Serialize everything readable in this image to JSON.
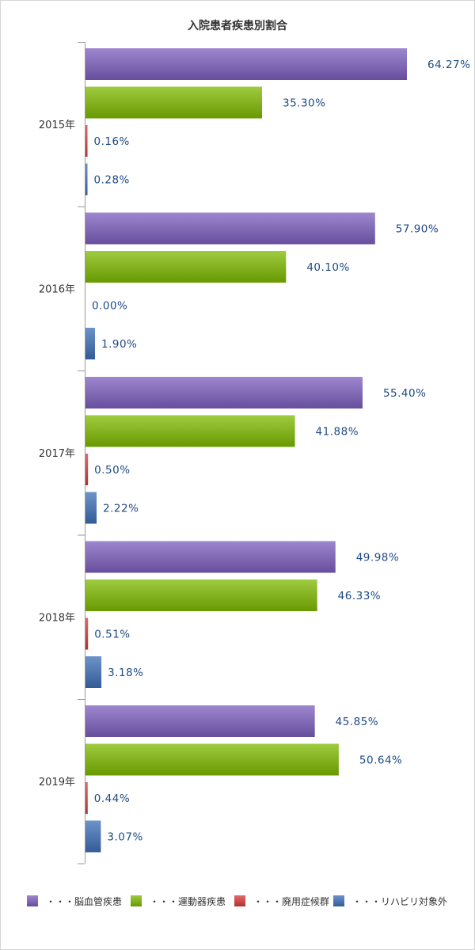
{
  "chart_data": {
    "type": "bar",
    "orientation": "horizontal",
    "title": "入院患者疾患別割合",
    "categories": [
      "2015年",
      "2016年",
      "2017年",
      "2018年",
      "2019年"
    ],
    "value_unit": "%",
    "xlim": [
      0,
      74
    ],
    "series": [
      {
        "name": "脳血管疾患",
        "color": "#7d5fbf",
        "values": [
          64.27,
          57.9,
          55.4,
          49.98,
          45.85
        ]
      },
      {
        "name": "運動器疾患",
        "color": "#7fba00",
        "values": [
          35.3,
          40.1,
          41.88,
          46.33,
          50.64
        ]
      },
      {
        "name": "廃用症候群",
        "color": "#d93a3a",
        "values": [
          0.16,
          0.0,
          0.5,
          0.51,
          0.44
        ]
      },
      {
        "name": "リハビリ対象外",
        "color": "#3d6fb8",
        "values": [
          0.28,
          1.9,
          2.22,
          3.18,
          3.07
        ]
      }
    ],
    "legend": {
      "placement": "bottom",
      "prefix": "・・・"
    },
    "grid": false
  }
}
